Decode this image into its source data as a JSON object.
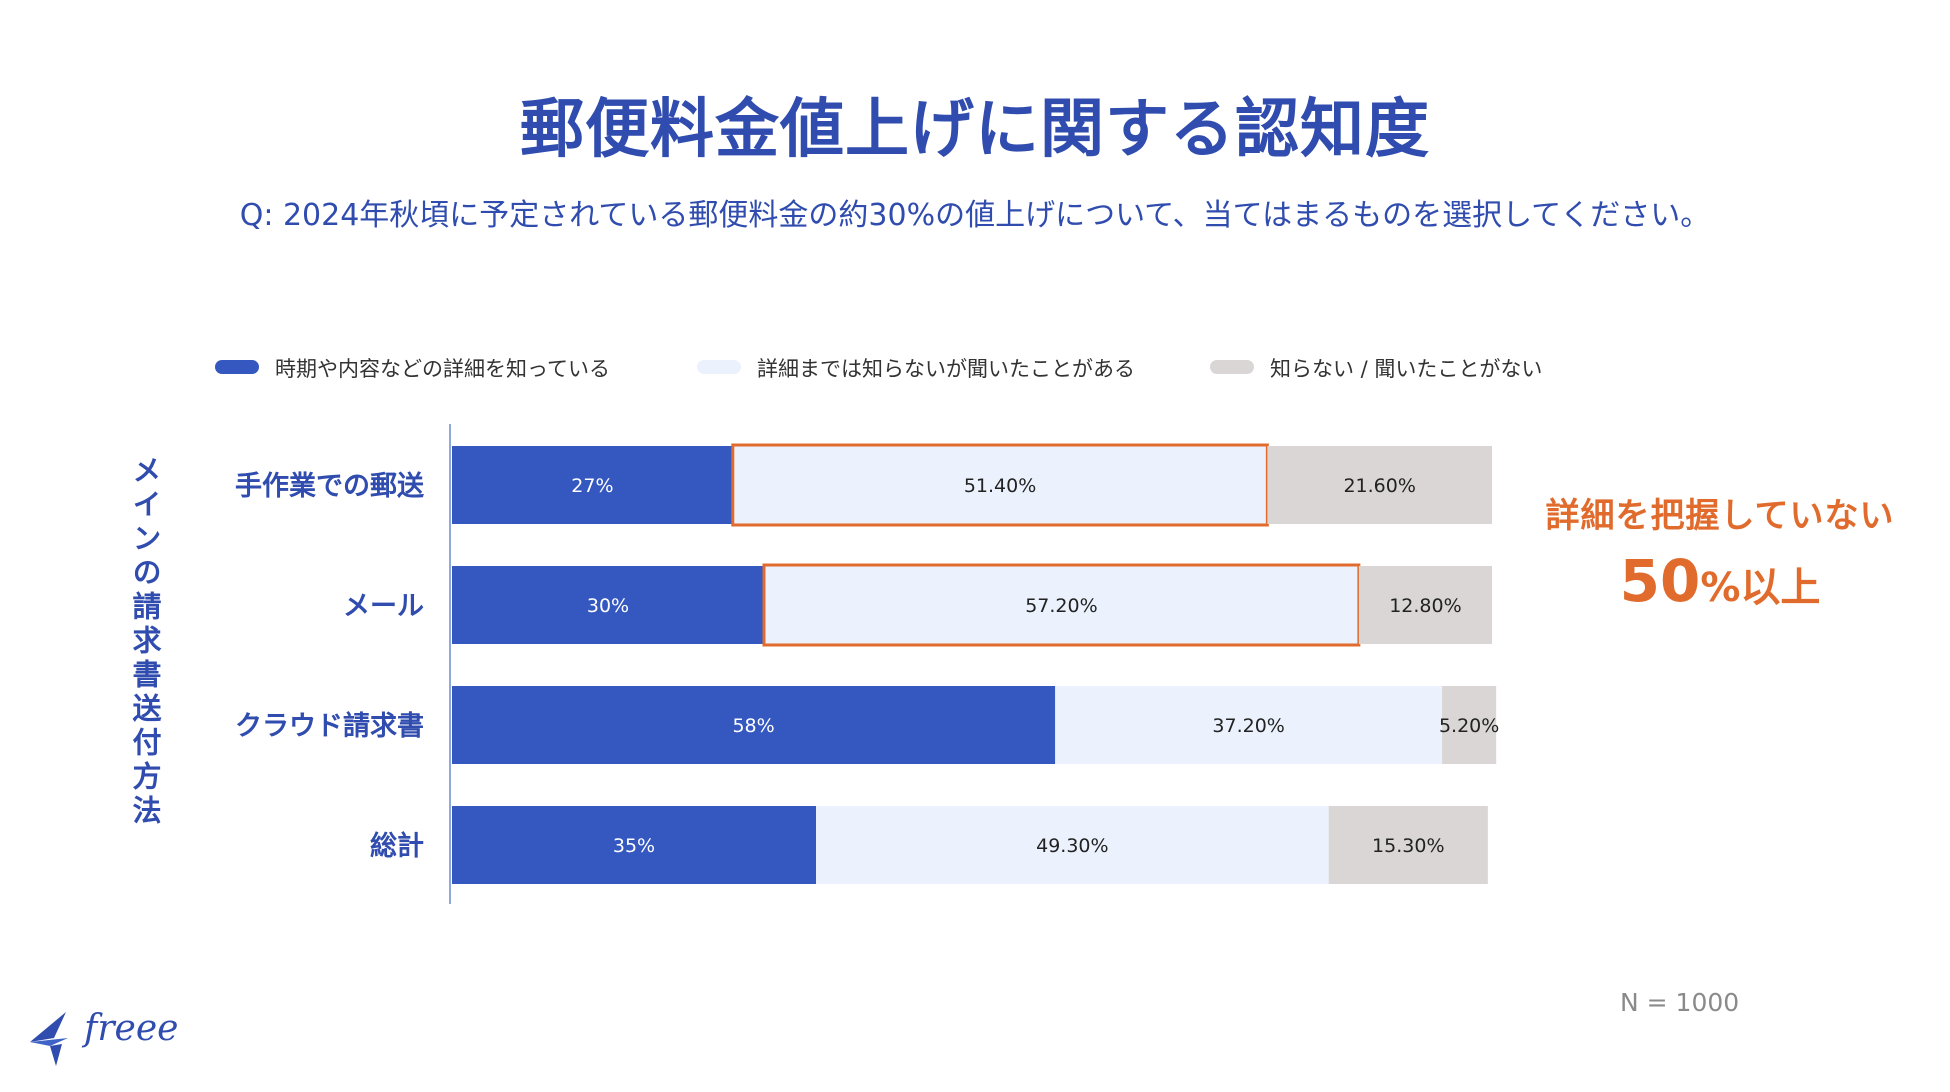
{
  "title": "郵便料金値上げに関する認知度",
  "subtitle": "Q: 2024年秋頃に予定されている郵便料金の約30%の値上げについて、当てはまるものを選択してください。",
  "colors": {
    "accent": "#2f4cae",
    "highlight": "#e06b2c",
    "grid_axis": "#8fa8dd"
  },
  "chart_data": {
    "type": "bar",
    "orientation": "horizontal",
    "stacked": true,
    "ylabel": "メインの請求書送付方法",
    "categories": [
      "手作業での郵送",
      "メール",
      "クラウド請求書",
      "総計"
    ],
    "series": [
      {
        "name": "時期や内容などの詳細を知っている",
        "color": "#3558c0",
        "values": [
          27,
          30,
          58,
          35
        ],
        "labels": [
          "27%",
          "30%",
          "58%",
          "35%"
        ]
      },
      {
        "name": "詳細までは知らないが聞いたことがある",
        "color": "#ebf2fd",
        "values": [
          51.4,
          57.2,
          37.2,
          49.3
        ],
        "labels": [
          "51.40%",
          "57.20%",
          "37.20%",
          "49.30%"
        ]
      },
      {
        "name": "知らない / 聞いたことがない",
        "color": "#d9d6d5",
        "values": [
          21.6,
          12.8,
          5.2,
          15.3
        ],
        "labels": [
          "21.60%",
          "12.80%",
          "5.20%",
          "15.30%"
        ]
      }
    ],
    "highlighted": [
      {
        "category": "手作業での郵送",
        "series": "詳細までは知らないが聞いたことがある"
      },
      {
        "category": "メール",
        "series": "詳細までは知らないが聞いたことがある"
      }
    ],
    "xlim": [
      0,
      100
    ],
    "legend_position": "top-left"
  },
  "callout": {
    "line1": "詳細を把握していない",
    "line2_number": "50",
    "line2_suffix": "%以上"
  },
  "sample_note": "N = 1000",
  "logo": {
    "text": "freee"
  }
}
